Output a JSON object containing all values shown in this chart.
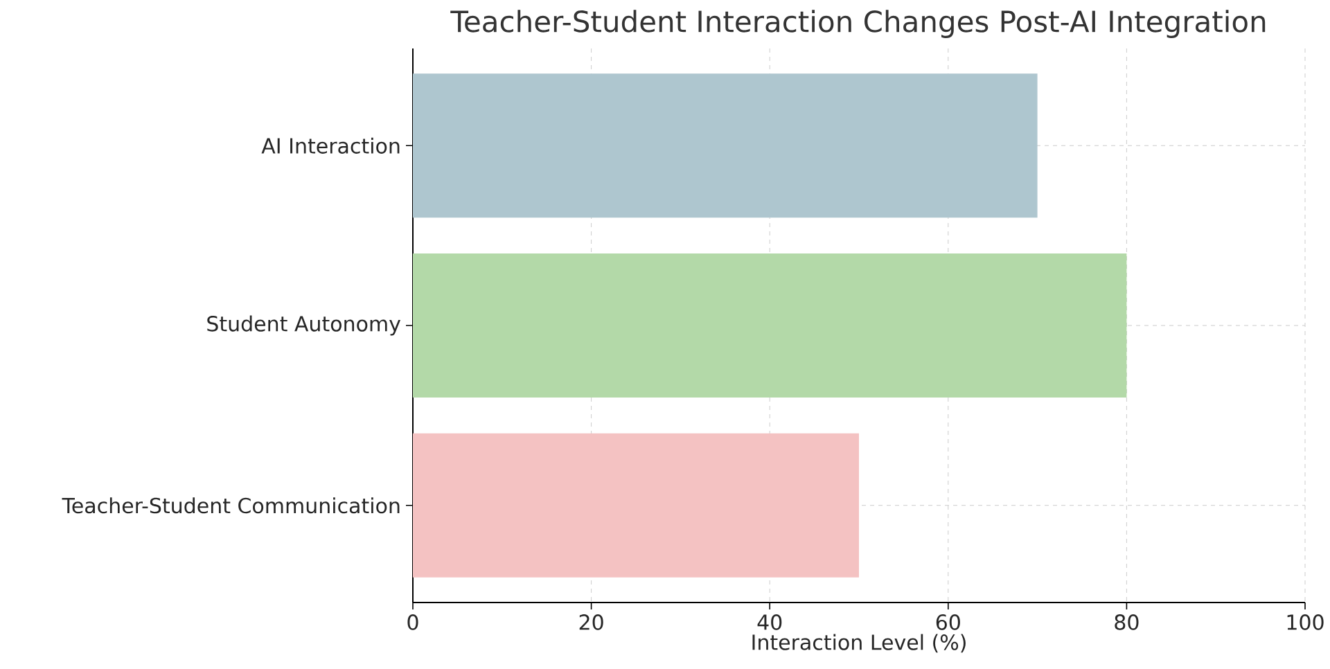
{
  "chart_data": {
    "type": "bar",
    "orientation": "horizontal",
    "title": "Teacher-Student Interaction Changes Post-AI Integration",
    "xlabel": "Interaction Level (%)",
    "categories": [
      "AI Interaction",
      "Student Autonomy",
      "Teacher-Student Communication"
    ],
    "values": [
      70,
      80,
      50
    ],
    "colors": [
      "#aec6cf",
      "#b3d9a8",
      "#f4c2c2"
    ],
    "xlim": [
      0,
      100
    ],
    "xticks": [
      0,
      20,
      40,
      60,
      80,
      100
    ],
    "grid": true
  }
}
